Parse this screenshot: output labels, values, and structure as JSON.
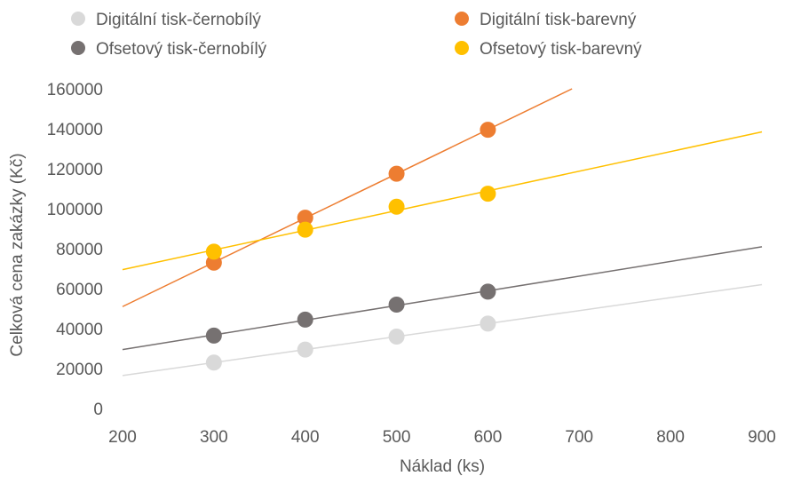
{
  "chart_data": {
    "type": "scatter",
    "title": "",
    "xlabel": "Náklad (ks)",
    "ylabel": "Celková cena zakázky (Kč)",
    "xlim": [
      200,
      900
    ],
    "ylim": [
      0,
      160000
    ],
    "xticks": [
      "200",
      "300",
      "400",
      "500",
      "600",
      "700",
      "800",
      "900"
    ],
    "yticks": [
      "0",
      "20000",
      "40000",
      "60000",
      "80000",
      "100000",
      "120000",
      "140000",
      "160000"
    ],
    "grid": false,
    "legend_position": "top",
    "trendlines": "linear",
    "series": [
      {
        "name": "Digitální tisk-černobílý",
        "color": "#d9d9d9",
        "x": [
          300,
          400,
          500,
          600
        ],
        "y": [
          23000,
          29500,
          36000,
          42500
        ],
        "trend_range": [
          200,
          900
        ]
      },
      {
        "name": "Digitální tisk-barevný",
        "color": "#ed7d31",
        "x": [
          300,
          400,
          500,
          600
        ],
        "y": [
          73000,
          95500,
          117500,
          139500
        ],
        "trend_range": [
          200,
          700
        ]
      },
      {
        "name": "Ofsetový tisk-černobílý",
        "color": "#767171",
        "x": [
          300,
          400,
          500,
          600
        ],
        "y": [
          36500,
          44500,
          52000,
          58500
        ],
        "trend_range": [
          200,
          900
        ]
      },
      {
        "name": "Ofsetový tisk-barevný",
        "color": "#ffc000",
        "x": [
          300,
          400,
          500,
          600
        ],
        "y": [
          78500,
          89500,
          101000,
          107500
        ],
        "trend_range": [
          200,
          900
        ]
      }
    ]
  }
}
